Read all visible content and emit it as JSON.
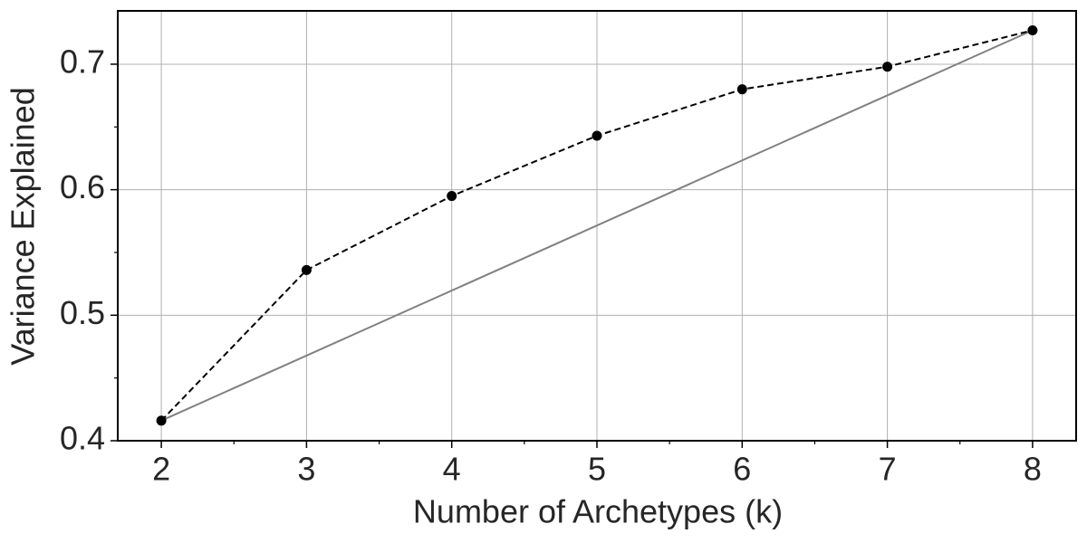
{
  "chart_data": {
    "type": "line",
    "x_label": "Number of Archetypes (k)",
    "y_label": "Variance Explained",
    "series": [
      {
        "x": [
          2,
          3,
          4,
          5,
          6,
          7,
          8
        ],
        "values": [
          0.416,
          0.536,
          0.595,
          0.643,
          0.68,
          0.698,
          0.727
        ],
        "color": "#000000",
        "dash": true,
        "markers": true
      },
      {
        "x": [
          2,
          8
        ],
        "values": [
          0.416,
          0.727
        ],
        "color": "#808080",
        "dash": false,
        "markers": false
      }
    ],
    "xlim": [
      1.7,
      8.3
    ],
    "ylim": [
      0.4,
      0.7425
    ],
    "xticks": [
      2,
      3,
      4,
      5,
      6,
      7,
      8
    ],
    "yticks": [
      0.4,
      0.5,
      0.6,
      0.7
    ],
    "xminor_ticks": [
      2.5,
      3.5,
      4.5,
      5.5,
      6.5,
      7.5
    ],
    "yminor_ticks": [
      0.45,
      0.55,
      0.65
    ],
    "grid": true
  }
}
